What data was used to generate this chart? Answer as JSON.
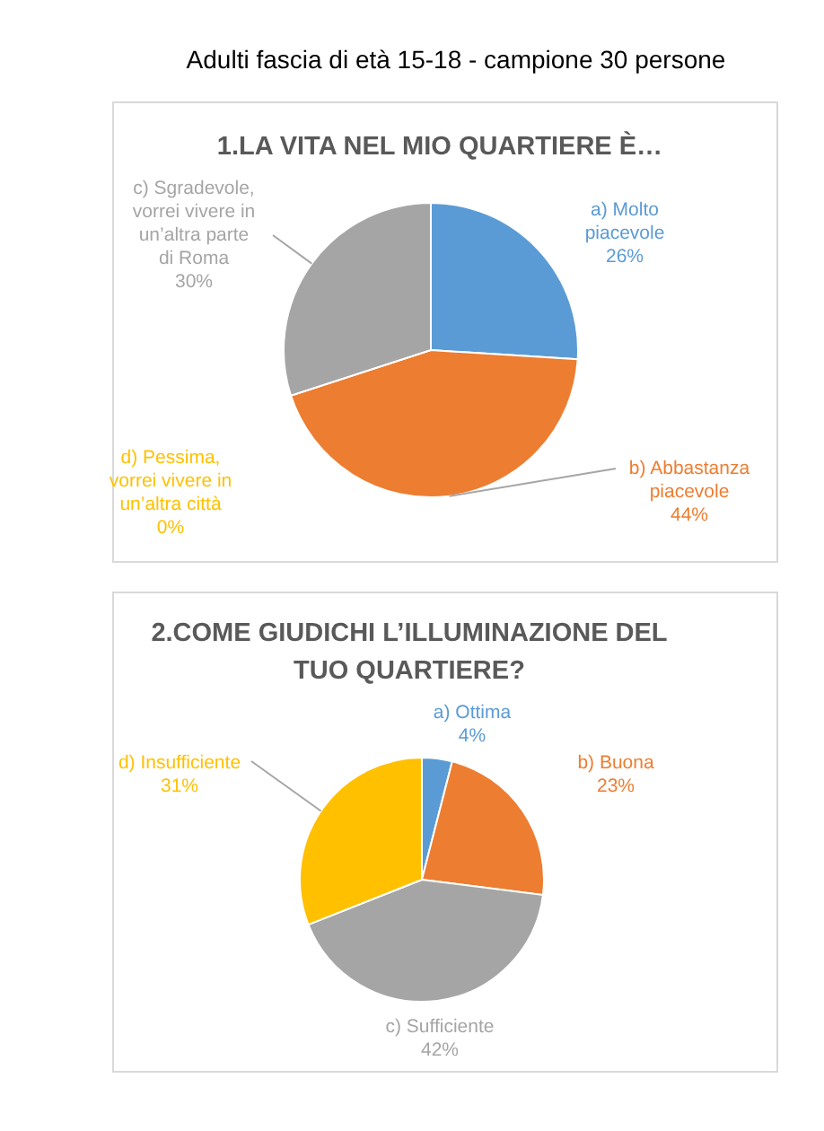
{
  "chart_data": [
    {
      "type": "pie",
      "title": "1.LA VITA NEL MIO QUARTIERE È…",
      "annotations": [
        "Adulti fascia di età 15-18 - campione 30 persone"
      ],
      "categories": [
        "a) Molto piacevole",
        "b) Abbastanza piacevole",
        "c) Sgradevole, vorrei vivere in un’altra parte di Roma",
        "d) Pessima, vorrei vivere in un’altra città"
      ],
      "values": [
        26,
        44,
        30,
        0
      ],
      "value_labels": [
        "26%",
        "44%",
        "30%",
        "0%"
      ],
      "colors": [
        "#5b9bd5",
        "#ed7d31",
        "#a5a5a5",
        "#ffc000"
      ]
    },
    {
      "type": "pie",
      "title": "2.COME GIUDICHI L’ILLUMINAZIONE DEL TUO QUARTIERE?",
      "categories": [
        "a) Ottima",
        "b) Buona",
        "c) Sufficiente",
        "d) Insufficiente"
      ],
      "values": [
        4,
        23,
        42,
        31
      ],
      "value_labels": [
        "4%",
        "23%",
        "42%",
        "31%"
      ],
      "colors": [
        "#5b9bd5",
        "#ed7d31",
        "#a5a5a5",
        "#ffc000"
      ]
    }
  ]
}
